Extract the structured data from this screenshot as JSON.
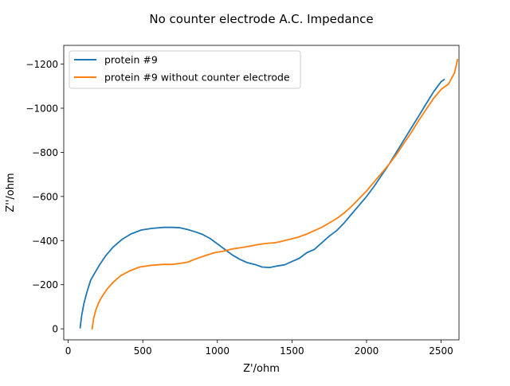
{
  "chart_data": {
    "type": "line",
    "title": "No counter electrode A.C. Impedance",
    "xlabel": "Z'/ohm",
    "ylabel": "Z''/ohm",
    "xlim": [
      -30,
      2620
    ],
    "ylim": [
      50,
      -1285
    ],
    "x_ticks": [
      0,
      500,
      1000,
      1500,
      2000,
      2500
    ],
    "x_tick_labels": [
      "0",
      "500",
      "1000",
      "1500",
      "2000",
      "2500"
    ],
    "y_ticks": [
      0,
      -200,
      -400,
      -600,
      -800,
      -1000,
      -1200
    ],
    "y_tick_labels": [
      "0",
      "−200",
      "−400",
      "−600",
      "−800",
      "−1000",
      "−1200"
    ],
    "legend_position": "top-left",
    "series": [
      {
        "name": "protein #9",
        "color": "#1f77b4",
        "x": [
          80,
          90,
          105,
          125,
          150,
          175,
          210,
          250,
          300,
          360,
          420,
          490,
          560,
          640,
          700,
          750,
          800,
          850,
          900,
          950,
          1000,
          1050,
          1100,
          1150,
          1200,
          1260,
          1300,
          1350,
          1400,
          1450,
          1500,
          1550,
          1600,
          1650,
          1700,
          1750,
          1800,
          1850,
          1900,
          1950,
          2000,
          2050,
          2100,
          2150,
          2200,
          2250,
          2300,
          2350,
          2400,
          2450,
          2500,
          2520
        ],
        "y": [
          -5,
          -60,
          -115,
          -165,
          -220,
          -250,
          -290,
          -330,
          -370,
          -405,
          -430,
          -448,
          -455,
          -460,
          -460,
          -458,
          -450,
          -440,
          -428,
          -410,
          -385,
          -360,
          -335,
          -315,
          -300,
          -290,
          -280,
          -278,
          -285,
          -290,
          -305,
          -320,
          -345,
          -360,
          -390,
          -420,
          -445,
          -480,
          -520,
          -560,
          -600,
          -645,
          -695,
          -745,
          -800,
          -855,
          -910,
          -965,
          -1020,
          -1075,
          -1120,
          -1130
        ]
      },
      {
        "name": "protein #9 without counter electrode",
        "color": "#ff7f0e",
        "x": [
          160,
          170,
          185,
          205,
          230,
          260,
          300,
          350,
          410,
          480,
          560,
          640,
          700,
          760,
          800,
          860,
          920,
          980,
          1040,
          1100,
          1160,
          1220,
          1280,
          1340,
          1380,
          1420,
          1480,
          1540,
          1600,
          1650,
          1700,
          1750,
          1800,
          1850,
          1900,
          1950,
          2000,
          2050,
          2100,
          2150,
          2200,
          2250,
          2300,
          2350,
          2400,
          2450,
          2500,
          2550,
          2590,
          2610
        ],
        "y": [
          0,
          -45,
          -85,
          -120,
          -150,
          -180,
          -210,
          -240,
          -262,
          -280,
          -288,
          -292,
          -292,
          -298,
          -302,
          -318,
          -332,
          -345,
          -352,
          -362,
          -368,
          -375,
          -383,
          -388,
          -390,
          -395,
          -405,
          -415,
          -430,
          -445,
          -460,
          -480,
          -500,
          -525,
          -555,
          -590,
          -625,
          -665,
          -705,
          -745,
          -790,
          -840,
          -890,
          -945,
          -995,
          -1045,
          -1085,
          -1110,
          -1160,
          -1220
        ]
      }
    ]
  }
}
